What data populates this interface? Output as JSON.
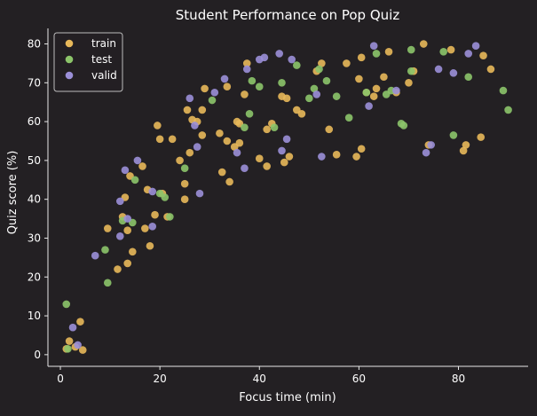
{
  "colors": {
    "background": "#232023",
    "axis": "#e8e8e8",
    "text": "#ffffff",
    "legend_border": "#bdbdbd"
  },
  "chart_data": {
    "type": "scatter",
    "title": "Student Performance on Pop Quiz",
    "xlabel": "Focus time (min)",
    "ylabel": "Quiz score (%)",
    "xlim": [
      -2.5,
      94
    ],
    "ylim": [
      -3,
      84
    ],
    "xticks": [
      0,
      20,
      40,
      60,
      80
    ],
    "yticks": [
      0,
      10,
      20,
      30,
      40,
      50,
      60,
      70,
      80
    ],
    "grid": false,
    "legend_position": "upper-left",
    "series": [
      {
        "name": "train",
        "color": "#e8b85a",
        "points": [
          [
            1.8,
            3.5
          ],
          [
            3.0,
            2.0
          ],
          [
            4.0,
            8.5
          ],
          [
            4.5,
            1.2
          ],
          [
            1.2,
            1.5
          ],
          [
            9.5,
            32.5
          ],
          [
            11.5,
            22.0
          ],
          [
            12.5,
            35.5
          ],
          [
            13.0,
            40.5
          ],
          [
            13.5,
            23.5
          ],
          [
            13.5,
            32.0
          ],
          [
            14.0,
            46.0
          ],
          [
            14.5,
            26.5
          ],
          [
            16.5,
            48.5
          ],
          [
            17.0,
            32.5
          ],
          [
            17.5,
            42.5
          ],
          [
            18.0,
            28.0
          ],
          [
            19.0,
            36.0
          ],
          [
            19.5,
            59.0
          ],
          [
            20.0,
            55.5
          ],
          [
            20.5,
            41.5
          ],
          [
            21.5,
            35.5
          ],
          [
            22.5,
            55.5
          ],
          [
            24.0,
            50.0
          ],
          [
            25.0,
            44.0
          ],
          [
            25.0,
            40.0
          ],
          [
            25.5,
            63.0
          ],
          [
            26.0,
            52.0
          ],
          [
            26.5,
            60.5
          ],
          [
            27.5,
            60.0
          ],
          [
            28.5,
            56.5
          ],
          [
            29.0,
            68.5
          ],
          [
            28.5,
            63.0
          ],
          [
            32.0,
            57.0
          ],
          [
            32.5,
            47.0
          ],
          [
            33.5,
            69.0
          ],
          [
            33.5,
            55.0
          ],
          [
            34.0,
            44.5
          ],
          [
            35.0,
            53.5
          ],
          [
            35.5,
            60.0
          ],
          [
            36.0,
            59.5
          ],
          [
            36.0,
            54.5
          ],
          [
            37.0,
            67.0
          ],
          [
            37.5,
            75.0
          ],
          [
            40.0,
            50.5
          ],
          [
            41.5,
            58.0
          ],
          [
            41.5,
            48.5
          ],
          [
            42.5,
            59.5
          ],
          [
            44.5,
            66.5
          ],
          [
            45.0,
            49.5
          ],
          [
            45.5,
            66.0
          ],
          [
            46.0,
            51.0
          ],
          [
            47.5,
            63.0
          ],
          [
            48.5,
            62.0
          ],
          [
            51.5,
            73.0
          ],
          [
            52.5,
            75.0
          ],
          [
            54.0,
            58.0
          ],
          [
            55.5,
            51.5
          ],
          [
            57.5,
            75.0
          ],
          [
            59.5,
            51.0
          ],
          [
            60.0,
            71.0
          ],
          [
            60.5,
            53.0
          ],
          [
            60.5,
            76.5
          ],
          [
            61.5,
            67.5
          ],
          [
            63.0,
            66.5
          ],
          [
            63.5,
            68.5
          ],
          [
            65.0,
            71.5
          ],
          [
            66.0,
            78.0
          ],
          [
            67.5,
            67.5
          ],
          [
            70.0,
            70.0
          ],
          [
            71.0,
            73.0
          ],
          [
            73.0,
            80.0
          ],
          [
            74.0,
            54.0
          ],
          [
            78.5,
            78.5
          ],
          [
            81.0,
            52.5
          ],
          [
            81.5,
            54.0
          ],
          [
            84.5,
            56.0
          ],
          [
            85.0,
            77.0
          ],
          [
            86.5,
            73.5
          ]
        ]
      },
      {
        "name": "test",
        "color": "#8cc46a",
        "points": [
          [
            1.2,
            13.0
          ],
          [
            1.5,
            1.5
          ],
          [
            9.0,
            27.0
          ],
          [
            9.5,
            18.5
          ],
          [
            12.5,
            34.5
          ],
          [
            14.5,
            34.0
          ],
          [
            15.0,
            45.0
          ],
          [
            20.0,
            41.5
          ],
          [
            21.0,
            40.5
          ],
          [
            22.0,
            35.5
          ],
          [
            25.0,
            48.0
          ],
          [
            30.5,
            65.5
          ],
          [
            37.0,
            58.5
          ],
          [
            38.0,
            62.0
          ],
          [
            38.5,
            70.5
          ],
          [
            40.0,
            69.0
          ],
          [
            43.0,
            58.5
          ],
          [
            44.5,
            70.0
          ],
          [
            47.5,
            74.5
          ],
          [
            50.0,
            66.0
          ],
          [
            51.0,
            68.5
          ],
          [
            52.0,
            73.5
          ],
          [
            53.5,
            70.5
          ],
          [
            55.5,
            66.5
          ],
          [
            58.0,
            61.0
          ],
          [
            61.5,
            67.5
          ],
          [
            63.5,
            77.5
          ],
          [
            65.5,
            67.0
          ],
          [
            66.5,
            68.0
          ],
          [
            68.5,
            59.5
          ],
          [
            69.0,
            59.0
          ],
          [
            70.5,
            78.5
          ],
          [
            70.5,
            73.0
          ],
          [
            77.0,
            78.0
          ],
          [
            79.0,
            56.5
          ],
          [
            82.0,
            71.5
          ],
          [
            89.0,
            68.0
          ],
          [
            90.0,
            63.0
          ]
        ]
      },
      {
        "name": "valid",
        "color": "#9b8fd8",
        "points": [
          [
            2.5,
            7.0
          ],
          [
            3.5,
            2.5
          ],
          [
            7.0,
            25.5
          ],
          [
            12.0,
            39.5
          ],
          [
            12.0,
            30.5
          ],
          [
            13.0,
            47.5
          ],
          [
            13.5,
            35.0
          ],
          [
            15.5,
            50.0
          ],
          [
            18.5,
            33.0
          ],
          [
            18.5,
            42.0
          ],
          [
            26.0,
            66.0
          ],
          [
            27.0,
            59.0
          ],
          [
            27.5,
            53.5
          ],
          [
            28.0,
            41.5
          ],
          [
            31.0,
            67.5
          ],
          [
            33.0,
            71.0
          ],
          [
            35.5,
            52.0
          ],
          [
            37.0,
            48.0
          ],
          [
            37.5,
            73.5
          ],
          [
            40.0,
            76.0
          ],
          [
            41.0,
            76.5
          ],
          [
            44.0,
            77.5
          ],
          [
            44.5,
            52.5
          ],
          [
            45.5,
            55.5
          ],
          [
            46.5,
            76.0
          ],
          [
            51.5,
            67.0
          ],
          [
            52.5,
            51.0
          ],
          [
            62.0,
            64.0
          ],
          [
            63.0,
            79.5
          ],
          [
            67.5,
            68.0
          ],
          [
            73.5,
            52.0
          ],
          [
            74.5,
            54.0
          ],
          [
            76.0,
            73.5
          ],
          [
            79.0,
            72.5
          ],
          [
            82.0,
            77.5
          ],
          [
            83.5,
            79.5
          ]
        ]
      }
    ]
  }
}
